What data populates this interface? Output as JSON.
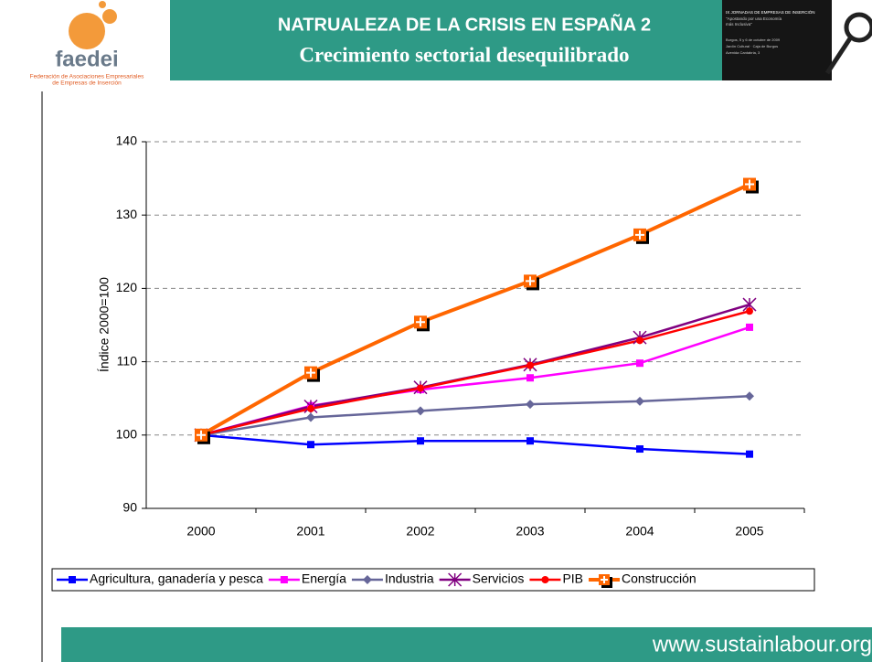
{
  "logo": {
    "name": "faedei",
    "line1": "Federación de Asociaciones Empresariales",
    "line2": "de Empresas de Inserción"
  },
  "header": {
    "title": "NATRUALEZA DE LA CRISIS EN ESPAÑA 2",
    "subtitle": "Crecimiento sectorial desequilibrado"
  },
  "banner": {
    "line1": "IX JORNADAS DE EMPRESAS DE INSERCIÓN",
    "line2": "\"Apostando por una Economía",
    "line3": "más Inclusiva\"",
    "line4": "Burgos, 5 y 6 de octubre de 2009",
    "line5": "Jardín Cultural · Caja de Burgos",
    "line6": "Avenida Cantabria, 3"
  },
  "footer": {
    "url": "www.sustainlabour.org"
  },
  "chart_data": {
    "type": "line",
    "ylabel": "Índice 2000=100",
    "categories": [
      "2000",
      "2001",
      "2002",
      "2003",
      "2004",
      "2005"
    ],
    "ylim": [
      90,
      140
    ],
    "yticks": [
      90,
      100,
      110,
      120,
      130,
      140
    ],
    "grid": true,
    "legend": "bottom",
    "series": [
      {
        "name": "Agricultura, ganadería y pesca",
        "color": "#0000ff",
        "marker": "square",
        "values": [
          100,
          98.7,
          99.2,
          99.2,
          98.1,
          97.4
        ]
      },
      {
        "name": "Energía",
        "color": "#ff00ff",
        "marker": "square",
        "values": [
          100,
          104.0,
          106.2,
          107.8,
          109.8,
          114.7
        ]
      },
      {
        "name": "Industria",
        "color": "#666699",
        "marker": "diamond",
        "values": [
          100,
          102.4,
          103.3,
          104.2,
          104.6,
          105.3
        ]
      },
      {
        "name": "Servicios",
        "color": "#800080",
        "marker": "star",
        "values": [
          100,
          103.9,
          106.5,
          109.6,
          113.3,
          117.8
        ]
      },
      {
        "name": "PIB",
        "color": "#ff0000",
        "marker": "circle",
        "values": [
          100,
          103.6,
          106.4,
          109.5,
          112.9,
          116.9
        ]
      },
      {
        "name": "Construcción",
        "color": "#ff6600",
        "marker": "plus-square",
        "values": [
          100,
          108.5,
          115.4,
          121.0,
          127.3,
          134.2
        ]
      }
    ]
  }
}
